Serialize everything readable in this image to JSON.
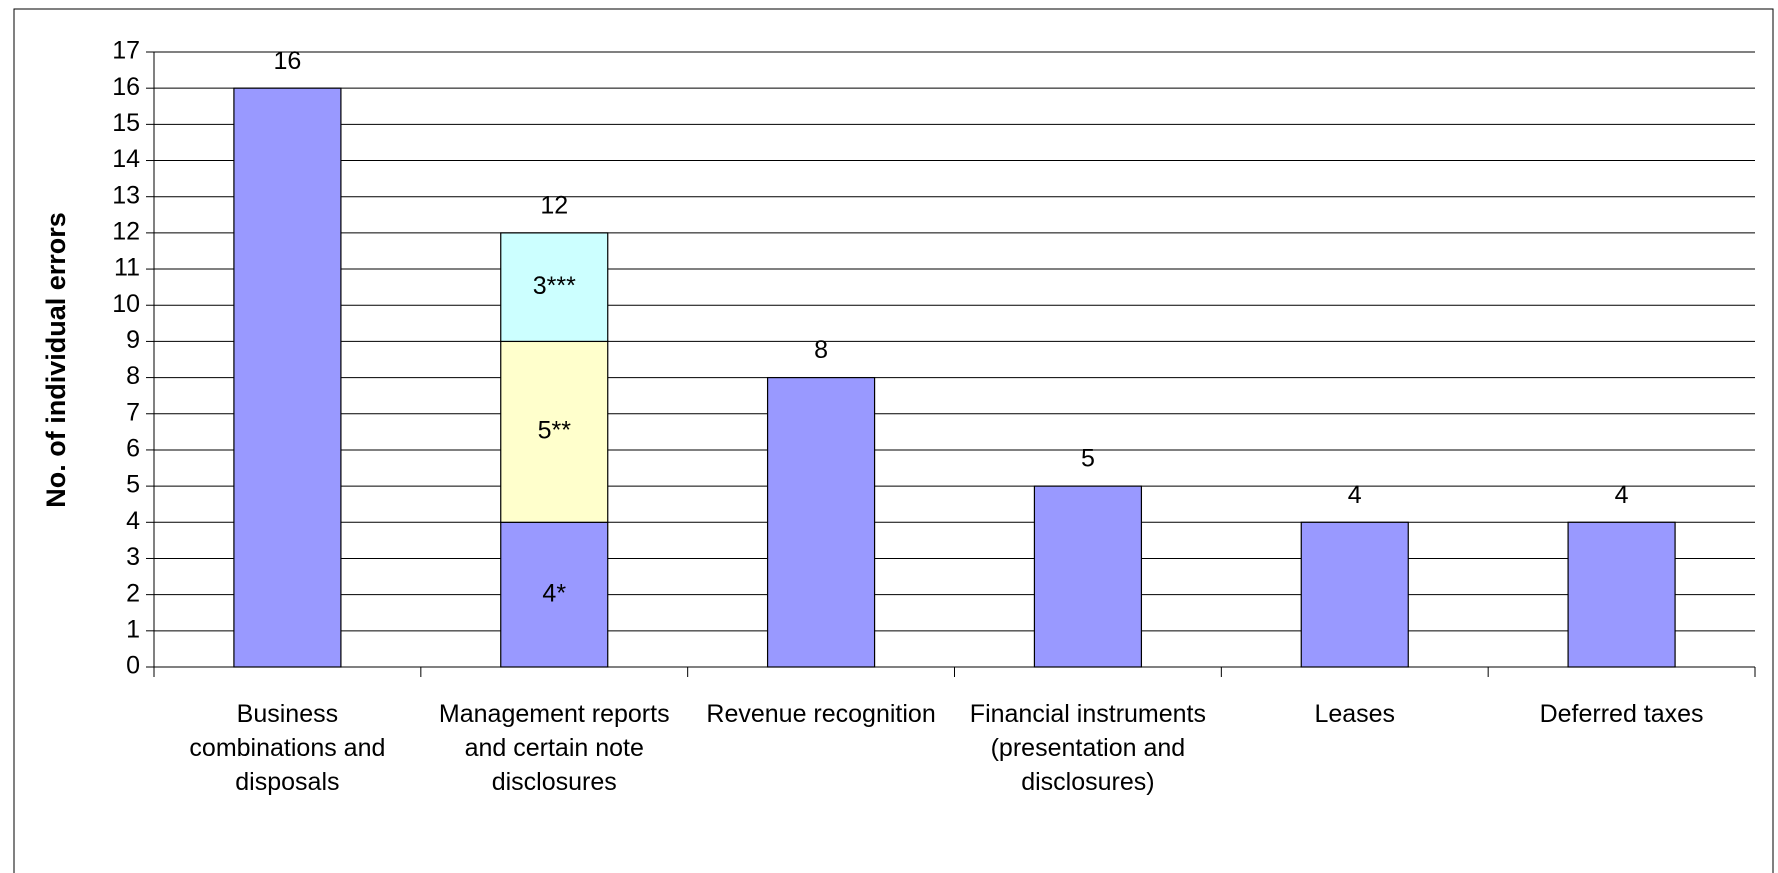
{
  "chart_data": {
    "type": "bar",
    "stacked": true,
    "y_label": "No. of individual errors",
    "categories": [
      "Business combinations and disposals",
      "Management reports and certain note disclosures",
      "Revenue recognition",
      "Financial instruments (presentation and disclosures)",
      "Leases",
      "Deferred taxes"
    ],
    "series": [
      {
        "color": "#9999ff",
        "values": [
          16,
          4,
          8,
          5,
          4,
          4
        ],
        "value_labels": [
          null,
          "4*",
          null,
          null,
          null,
          null
        ]
      },
      {
        "color": "#ffffcc",
        "values": [
          null,
          5,
          null,
          null,
          null,
          null
        ],
        "value_labels": [
          null,
          "5**",
          null,
          null,
          null,
          null
        ]
      },
      {
        "color": "#ccffff",
        "values": [
          null,
          3,
          null,
          null,
          null,
          null
        ],
        "value_labels": [
          null,
          "3***",
          null,
          null,
          null,
          null
        ]
      }
    ],
    "totals": [
      16,
      12,
      8,
      5,
      4,
      4
    ],
    "ylim": [
      0,
      17
    ],
    "yticks": [
      0,
      1,
      2,
      3,
      4,
      5,
      6,
      7,
      8,
      9,
      10,
      11,
      12,
      13,
      14,
      15,
      16,
      17
    ],
    "grid": true
  }
}
